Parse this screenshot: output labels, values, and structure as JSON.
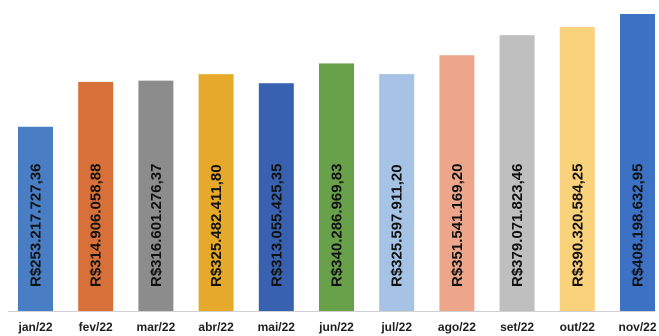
{
  "chart_data": {
    "type": "bar",
    "title": "",
    "xlabel": "",
    "ylabel": "",
    "ylim": [
      0,
      420000000
    ],
    "grid": false,
    "categories": [
      "jan/22",
      "fev/22",
      "mar/22",
      "abr/22",
      "mai/22",
      "jun/22",
      "jul/22",
      "ago/22",
      "set/22",
      "out/22",
      "nov/22"
    ],
    "values": [
      253217727.36,
      314906058.88,
      316601276.37,
      325482411.8,
      313055425.35,
      340286969.83,
      325597911.2,
      351541169.2,
      379071823.46,
      390320584.25,
      408198632.95
    ],
    "data_labels": [
      "R$253.217.727,36",
      "R$314.906.058,88",
      "R$316.601.276,37",
      "R$325.482.411,80",
      "R$313.055.425,35",
      "R$340.286.969,83",
      "R$325.597.911,20",
      "R$351.541.169,20",
      "R$379.071.823,46",
      "R$390.320.584,25",
      "R$408.198.632,95"
    ],
    "colors": [
      "#4a7ec4",
      "#d8703a",
      "#8c8c8c",
      "#e6a92a",
      "#3862b0",
      "#68a14a",
      "#a6c3e6",
      "#eda68a",
      "#bfbfbf",
      "#fbd27c",
      "#3d71c4"
    ]
  }
}
